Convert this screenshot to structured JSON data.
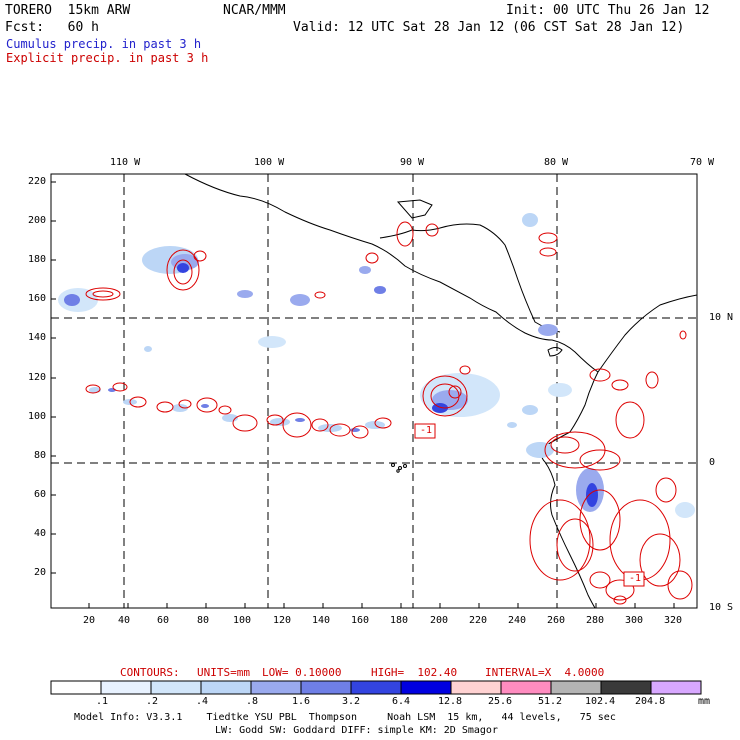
{
  "header": {
    "model": "TORERO  15km ARW",
    "org": "NCAR/MMM",
    "init": "Init: 00 UTC Thu 26 Jan 12",
    "fcst": "Fcst:   60 h",
    "valid": "Valid: 12 UTC Sat 28 Jan 12 (06 CST Sat 28 Jan 12)"
  },
  "legend": {
    "cumulus": "Cumulus precip. in past 3 h",
    "explicit": "Explicit precip. in past 3 h",
    "cumulus_color": "#2222cc",
    "explicit_color": "#cc0000"
  },
  "map": {
    "lon_labels": [
      "110 W",
      "100 W",
      "90 W",
      "80 W",
      "70 W"
    ],
    "lat_labels": [
      "10 N",
      "0",
      "10 S"
    ],
    "y_ticks": [
      "220",
      "200",
      "180",
      "160",
      "140",
      "120",
      "100",
      "80",
      "60",
      "40",
      "20"
    ],
    "x_ticks": [
      "20",
      "40",
      "60",
      "80",
      "100",
      "120",
      "140",
      "160",
      "180",
      "200",
      "220",
      "240",
      "260",
      "280",
      "300",
      "320"
    ],
    "low_markers": [
      "-1",
      "-1"
    ]
  },
  "contours": {
    "label": "CONTOURS:",
    "units": "UNITS=mm",
    "low": "LOW= 0.10000",
    "high": "HIGH=  102.40",
    "interval": "INTERVAL=X  4.0000"
  },
  "colorbar": {
    "labels": [
      ".1",
      ".2",
      ".4",
      ".8",
      "1.6",
      "3.2",
      "6.4",
      "12.8",
      "25.6",
      "51.2",
      "102.4",
      "204.8"
    ],
    "unit": "mm",
    "colors": [
      "#ffffff",
      "#e8f2ff",
      "#d2e6fa",
      "#bcd6f6",
      "#9aaaee",
      "#6f7fe6",
      "#3344e0",
      "#0000e0",
      "#ffd2d2",
      "#ff8cc0",
      "#b4b4b4",
      "#3a3a3a",
      "#d8a8ff"
    ]
  },
  "footer": {
    "line1": "Model Info: V3.3.1    Tiedtke YSU PBL  Thompson     Noah LSM  15 km,   44 levels,   75 sec",
    "line2": "LW: Godd SW: Goddard DIFF: simple KM: 2D Smagor"
  }
}
